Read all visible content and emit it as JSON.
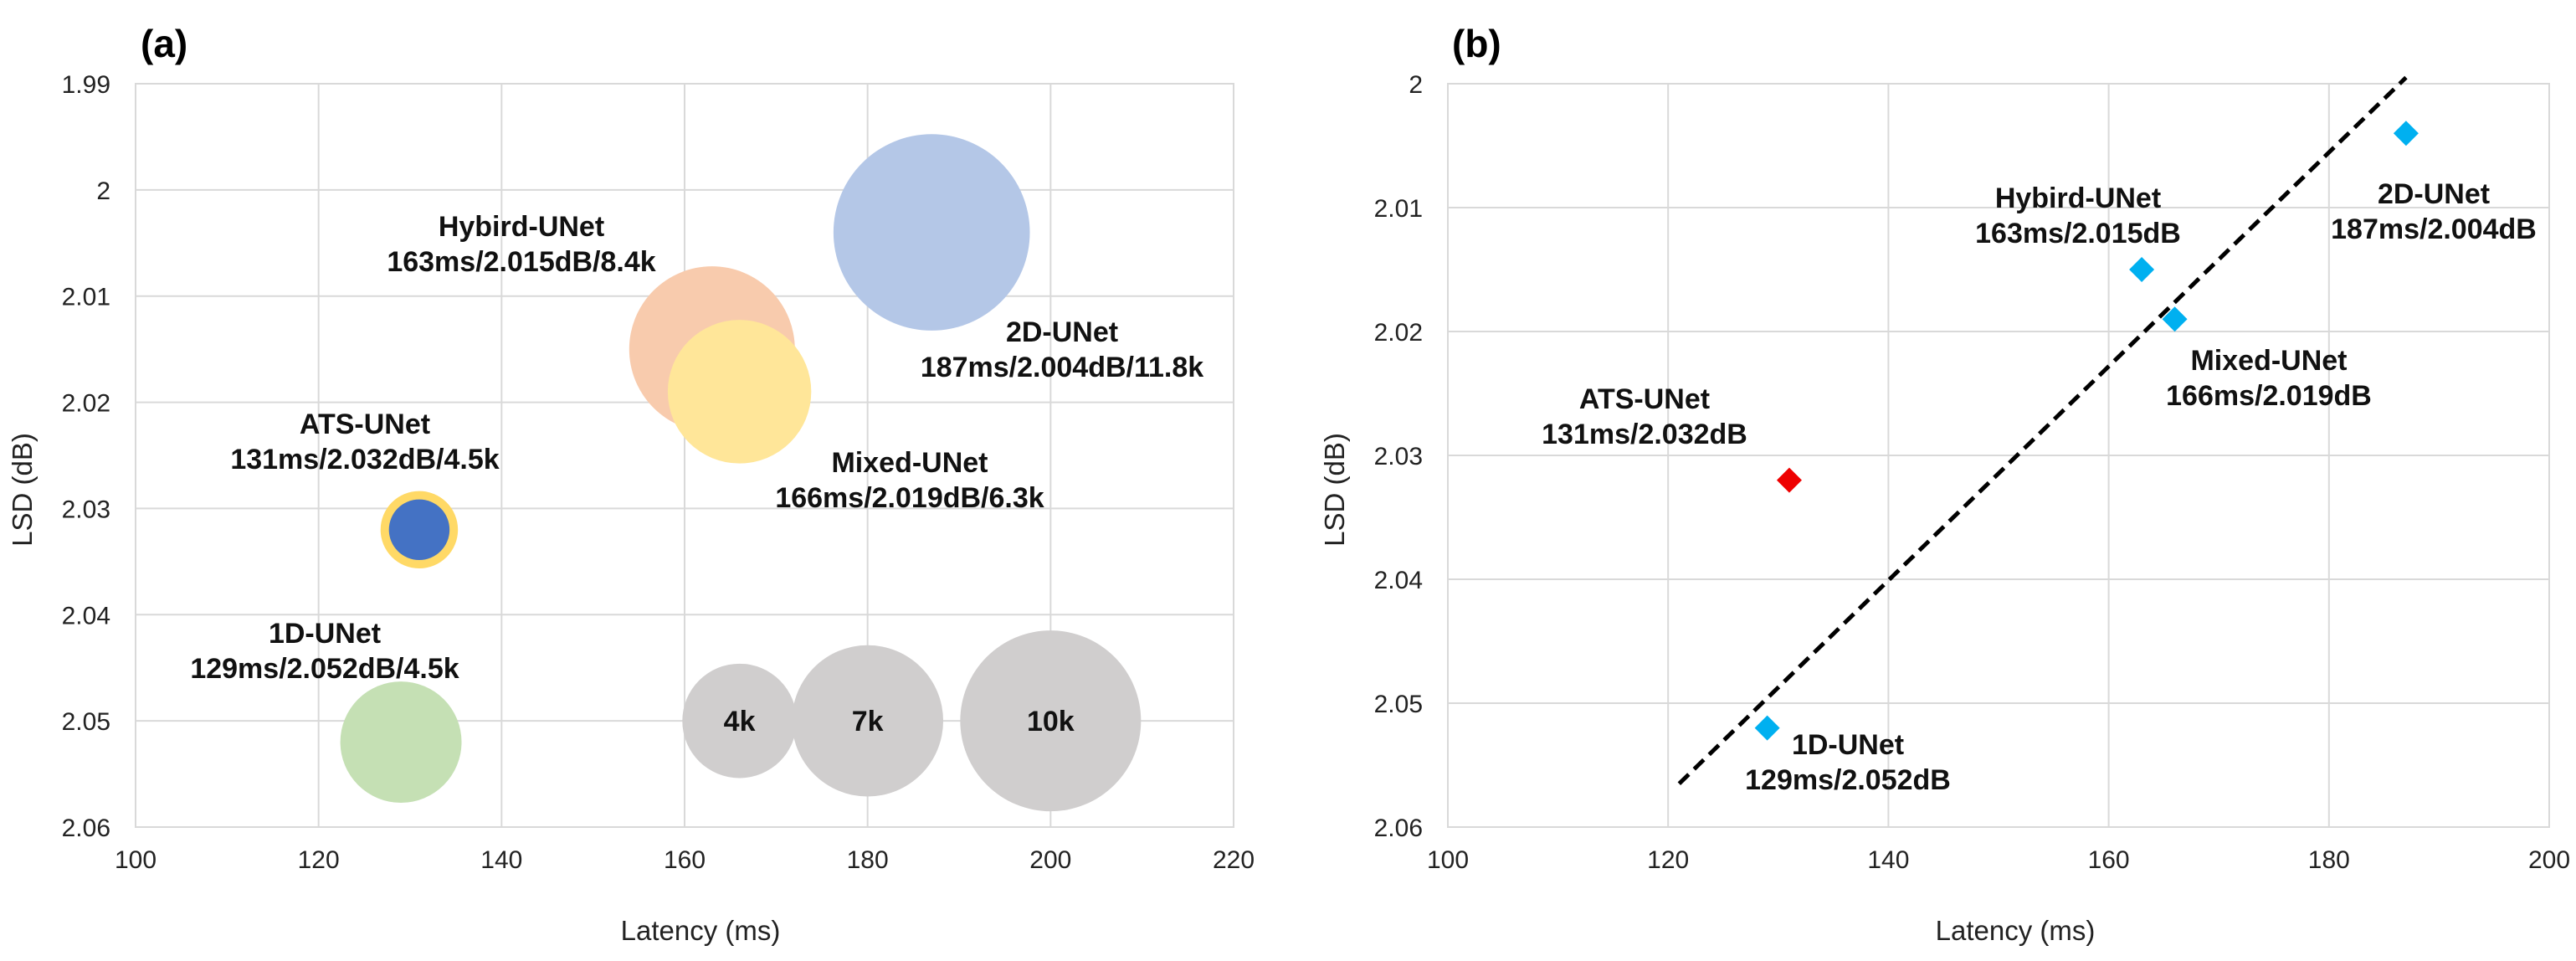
{
  "chart_data": [
    {
      "panel": "(a)",
      "type": "bubble",
      "xlabel": "Latency (ms)",
      "ylabel": "LSD (dB)",
      "xlim": [
        100,
        220
      ],
      "ylim": [
        1.99,
        2.06
      ],
      "y_inverted": true,
      "xticks": [
        "100",
        "120",
        "140",
        "160",
        "180",
        "200",
        "220"
      ],
      "yticks": [
        "1.99",
        "2",
        "2.01",
        "2.02",
        "2.03",
        "2.04",
        "2.05",
        "2.06"
      ],
      "grid": true,
      "points": [
        {
          "name": "Hybird-UNet",
          "x": 163,
          "y": 2.015,
          "params_k": 8.4,
          "color": "#f8cbad",
          "label": "Hybird-UNet",
          "sublabel": "163ms/2.015dB/8.4k"
        },
        {
          "name": "2D-UNet",
          "x": 187,
          "y": 2.004,
          "params_k": 11.8,
          "color": "#b4c7e7",
          "label": "2D-UNet",
          "sublabel": "187ms/2.004dB/11.8k"
        },
        {
          "name": "Mixed-UNet",
          "x": 166,
          "y": 2.019,
          "params_k": 6.3,
          "color": "#ffe699",
          "label": "Mixed-UNet",
          "sublabel": "166ms/2.019dB/6.3k"
        },
        {
          "name": "ATS-UNet",
          "x": 131,
          "y": 2.032,
          "params_k": 4.5,
          "color": "#4472c4",
          "outline": "#ffd966",
          "label": "ATS-UNet",
          "sublabel": "131ms/2.032dB/4.5k"
        },
        {
          "name": "1D-UNet",
          "x": 129,
          "y": 2.052,
          "params_k": 4.5,
          "color": "#c5e0b4",
          "label": "1D-UNet",
          "sublabel": "129ms/2.052dB/4.5k"
        }
      ],
      "size_legend": [
        {
          "label": "4k",
          "x": 166,
          "y": 2.05,
          "params_k": 4
        },
        {
          "label": "7k",
          "x": 180,
          "y": 2.05,
          "params_k": 7
        },
        {
          "label": "10k",
          "x": 200,
          "y": 2.05,
          "params_k": 10
        }
      ],
      "size_legend_color": "#d0cece"
    },
    {
      "panel": "(b)",
      "type": "scatter",
      "xlabel": "Latency (ms)",
      "ylabel": "LSD (dB)",
      "xlim": [
        100,
        200
      ],
      "ylim": [
        2.0,
        2.06
      ],
      "y_inverted": true,
      "xticks": [
        "100",
        "120",
        "140",
        "160",
        "180",
        "200"
      ],
      "yticks": [
        "2",
        "2.01",
        "2.02",
        "2.03",
        "2.04",
        "2.05",
        "2.06"
      ],
      "grid": true,
      "points": [
        {
          "name": "1D-UNet",
          "x": 129,
          "y": 2.052,
          "color": "#00b0f0",
          "label": "1D-UNet",
          "sublabel": "129ms/2.052dB"
        },
        {
          "name": "ATS-UNet",
          "x": 131,
          "y": 2.032,
          "color": "#ee0000",
          "label": "ATS-UNet",
          "sublabel": "131ms/2.032dB"
        },
        {
          "name": "Hybird-UNet",
          "x": 163,
          "y": 2.015,
          "color": "#00b0f0",
          "label": "Hybird-UNet",
          "sublabel": "163ms/2.015dB"
        },
        {
          "name": "Mixed-UNet",
          "x": 166,
          "y": 2.019,
          "color": "#00b0f0",
          "label": "Mixed-UNet",
          "sublabel": "166ms/2.019dB"
        },
        {
          "name": "2D-UNet",
          "x": 187,
          "y": 2.004,
          "color": "#00b0f0",
          "label": "2D-UNet",
          "sublabel": "187ms/2.004dB"
        }
      ],
      "trendline": {
        "x_start": 121,
        "y_start": 2.0565,
        "x_end": 187,
        "y_end": 1.9995,
        "style": "dashed",
        "color": "#000000"
      }
    }
  ],
  "colors": {
    "grid": "#d9d9d9",
    "frame": "#d9d9d9",
    "text": "#222222"
  }
}
